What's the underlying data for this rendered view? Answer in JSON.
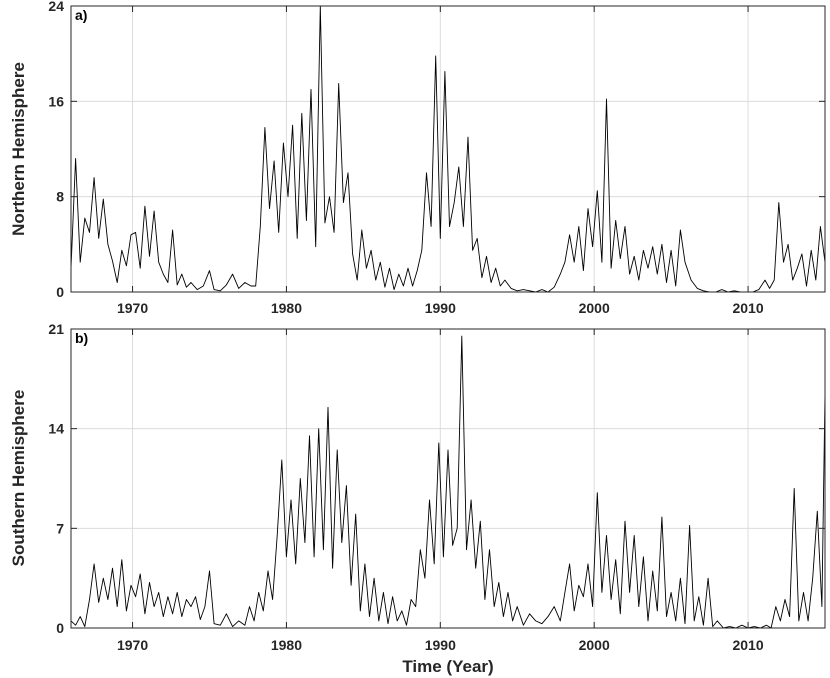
{
  "chart_data": [
    {
      "type": "line",
      "panel_label": "a)",
      "ylabel": "Northern Hemisphere",
      "xlim": [
        1966,
        2015
      ],
      "ylim": [
        0,
        24
      ],
      "xticks": [
        1970,
        1980,
        1990,
        2000,
        2010
      ],
      "yticks": [
        0,
        8,
        16,
        24
      ],
      "grid": true,
      "color": "#000000",
      "series": [
        {
          "x": [
            1966.0,
            1966.3,
            1966.6,
            1966.9,
            1967.2,
            1967.5,
            1967.8,
            1968.1,
            1968.4,
            1968.7,
            1969.0,
            1969.3,
            1969.6,
            1969.9,
            1970.2,
            1970.5,
            1970.8,
            1971.1,
            1971.4,
            1971.7,
            1972.0,
            1972.3,
            1972.6,
            1972.9,
            1973.2,
            1973.5,
            1973.8,
            1974.2,
            1974.6,
            1975.0,
            1975.3,
            1975.7,
            1976.1,
            1976.5,
            1976.9,
            1977.3,
            1977.7,
            1978.0,
            1978.3,
            1978.6,
            1978.9,
            1979.2,
            1979.5,
            1979.8,
            1980.1,
            1980.4,
            1980.7,
            1981.0,
            1981.3,
            1981.6,
            1981.9,
            1982.2,
            1982.5,
            1982.8,
            1983.1,
            1983.4,
            1983.7,
            1984.0,
            1984.3,
            1984.6,
            1984.9,
            1985.2,
            1985.5,
            1985.8,
            1986.1,
            1986.4,
            1986.7,
            1987.0,
            1987.3,
            1987.6,
            1987.9,
            1988.2,
            1988.5,
            1988.8,
            1989.1,
            1989.4,
            1989.7,
            1990.0,
            1990.3,
            1990.6,
            1990.9,
            1991.2,
            1991.5,
            1991.8,
            1992.1,
            1992.4,
            1992.7,
            1993.0,
            1993.3,
            1993.6,
            1993.9,
            1994.2,
            1994.6,
            1995.0,
            1995.4,
            1995.8,
            1996.2,
            1996.6,
            1997.0,
            1997.4,
            1997.8,
            1998.1,
            1998.4,
            1998.7,
            1999.0,
            1999.3,
            1999.6,
            1999.9,
            2000.2,
            2000.5,
            2000.8,
            2001.1,
            2001.4,
            2001.7,
            2002.0,
            2002.3,
            2002.6,
            2002.9,
            2003.2,
            2003.5,
            2003.8,
            2004.1,
            2004.4,
            2004.7,
            2005.0,
            2005.3,
            2005.6,
            2005.9,
            2006.3,
            2006.7,
            2007.1,
            2007.5,
            2007.9,
            2008.3,
            2008.7,
            2009.1,
            2009.5,
            2009.9,
            2010.3,
            2010.7,
            2011.1,
            2011.4,
            2011.7,
            2012.0,
            2012.3,
            2012.6,
            2012.9,
            2013.2,
            2013.5,
            2013.8,
            2014.1,
            2014.4,
            2014.7,
            2015.0
          ],
          "values": [
            2.0,
            11.2,
            2.5,
            6.2,
            5.0,
            9.6,
            4.5,
            7.8,
            4.0,
            2.6,
            0.8,
            3.5,
            2.2,
            4.8,
            5.0,
            2.0,
            7.2,
            3.0,
            6.8,
            2.5,
            1.5,
            0.8,
            5.2,
            0.6,
            1.5,
            0.4,
            0.8,
            0.2,
            0.5,
            1.8,
            0.2,
            0.1,
            0.6,
            1.5,
            0.3,
            0.8,
            0.5,
            0.5,
            5.5,
            13.8,
            7.0,
            11.0,
            5.0,
            12.5,
            8.0,
            14.0,
            4.5,
            15.0,
            6.0,
            17.0,
            3.8,
            24.0,
            5.8,
            8.0,
            5.0,
            17.5,
            7.5,
            10.0,
            3.2,
            1.0,
            5.2,
            2.0,
            3.5,
            1.0,
            2.5,
            0.4,
            2.0,
            0.2,
            1.5,
            0.5,
            2.0,
            0.5,
            1.8,
            3.5,
            10.0,
            5.5,
            19.8,
            4.5,
            18.5,
            5.5,
            7.5,
            10.5,
            5.5,
            13.0,
            3.5,
            4.5,
            1.2,
            3.0,
            0.8,
            2.0,
            0.5,
            1.0,
            0.3,
            0.1,
            0.2,
            0.1,
            0.0,
            0.2,
            0.0,
            0.4,
            1.5,
            2.5,
            4.8,
            2.5,
            5.5,
            1.8,
            7.0,
            3.8,
            8.5,
            2.5,
            16.2,
            2.0,
            6.0,
            2.8,
            5.5,
            1.5,
            3.0,
            1.0,
            3.5,
            2.0,
            3.8,
            1.5,
            4.0,
            0.8,
            3.5,
            0.5,
            5.2,
            2.5,
            1.0,
            0.3,
            0.1,
            0.0,
            0.0,
            0.2,
            0.0,
            0.1,
            0.0,
            0.0,
            0.0,
            0.2,
            1.0,
            0.3,
            1.0,
            7.5,
            2.5,
            4.0,
            1.0,
            2.0,
            3.2,
            0.5,
            3.5,
            1.0,
            5.5,
            2.5
          ]
        }
      ]
    },
    {
      "type": "line",
      "panel_label": "b)",
      "ylabel": "Southern Hemisphere",
      "xlabel": "Time (Year)",
      "xlim": [
        1966,
        2015
      ],
      "ylim": [
        0,
        21
      ],
      "xticks": [
        1970,
        1980,
        1990,
        2000,
        2010
      ],
      "yticks": [
        0,
        7,
        14,
        21
      ],
      "grid": true,
      "color": "#000000",
      "series": [
        {
          "x": [
            1966.0,
            1966.3,
            1966.6,
            1966.9,
            1967.2,
            1967.5,
            1967.8,
            1968.1,
            1968.4,
            1968.7,
            1969.0,
            1969.3,
            1969.6,
            1969.9,
            1970.2,
            1970.5,
            1970.8,
            1971.1,
            1971.4,
            1971.7,
            1972.0,
            1972.3,
            1972.6,
            1972.9,
            1973.2,
            1973.5,
            1973.8,
            1974.1,
            1974.4,
            1974.7,
            1975.0,
            1975.3,
            1975.7,
            1976.1,
            1976.5,
            1976.9,
            1977.3,
            1977.6,
            1977.9,
            1978.2,
            1978.5,
            1978.8,
            1979.1,
            1979.4,
            1979.7,
            1980.0,
            1980.3,
            1980.6,
            1980.9,
            1981.2,
            1981.5,
            1981.8,
            1982.1,
            1982.4,
            1982.7,
            1983.0,
            1983.3,
            1983.6,
            1983.9,
            1984.2,
            1984.5,
            1984.8,
            1985.1,
            1985.4,
            1985.7,
            1986.0,
            1986.3,
            1986.6,
            1986.9,
            1987.2,
            1987.5,
            1987.8,
            1988.1,
            1988.4,
            1988.7,
            1989.0,
            1989.3,
            1989.6,
            1989.9,
            1990.2,
            1990.5,
            1990.8,
            1991.1,
            1991.4,
            1991.7,
            1992.0,
            1992.3,
            1992.6,
            1992.9,
            1993.2,
            1993.5,
            1993.8,
            1994.1,
            1994.4,
            1994.7,
            1995.0,
            1995.4,
            1995.8,
            1996.2,
            1996.6,
            1997.0,
            1997.4,
            1997.8,
            1998.1,
            1998.4,
            1998.7,
            1999.0,
            1999.3,
            1999.6,
            1999.9,
            2000.2,
            2000.5,
            2000.8,
            2001.1,
            2001.4,
            2001.7,
            2002.0,
            2002.3,
            2002.6,
            2002.9,
            2003.2,
            2003.5,
            2003.8,
            2004.1,
            2004.4,
            2004.7,
            2005.0,
            2005.3,
            2005.6,
            2005.9,
            2006.2,
            2006.5,
            2006.8,
            2007.1,
            2007.4,
            2007.7,
            2008.0,
            2008.4,
            2008.8,
            2009.2,
            2009.6,
            2010.0,
            2010.4,
            2010.8,
            2011.2,
            2011.5,
            2011.8,
            2012.1,
            2012.4,
            2012.7,
            2013.0,
            2013.3,
            2013.6,
            2013.9,
            2014.2,
            2014.5,
            2014.8,
            2015.0
          ],
          "values": [
            0.5,
            0.2,
            0.8,
            0.1,
            2.0,
            4.5,
            1.8,
            3.5,
            2.0,
            4.2,
            1.5,
            4.8,
            1.2,
            3.0,
            2.2,
            3.8,
            1.0,
            3.2,
            1.5,
            2.5,
            0.8,
            2.2,
            1.0,
            2.5,
            0.8,
            2.0,
            1.5,
            2.2,
            0.6,
            1.5,
            4.0,
            0.3,
            0.2,
            1.0,
            0.1,
            0.5,
            0.2,
            1.5,
            0.5,
            2.5,
            1.2,
            4.0,
            2.0,
            6.5,
            11.8,
            5.0,
            9.0,
            4.5,
            10.5,
            6.0,
            13.5,
            5.0,
            14.0,
            5.5,
            15.5,
            4.2,
            12.5,
            6.0,
            10.0,
            3.0,
            8.0,
            1.2,
            4.5,
            0.8,
            3.5,
            0.5,
            2.5,
            0.3,
            2.2,
            0.5,
            1.2,
            0.2,
            2.0,
            1.5,
            5.5,
            3.5,
            9.0,
            4.5,
            13.0,
            5.0,
            12.5,
            5.8,
            7.0,
            20.5,
            5.5,
            9.0,
            4.2,
            7.5,
            2.0,
            5.5,
            1.5,
            3.2,
            0.8,
            2.5,
            0.5,
            1.5,
            0.2,
            1.0,
            0.5,
            0.3,
            0.8,
            1.5,
            0.5,
            2.5,
            4.5,
            1.2,
            3.0,
            2.2,
            4.5,
            1.5,
            9.5,
            2.5,
            6.5,
            2.0,
            4.8,
            1.0,
            7.5,
            2.5,
            6.5,
            1.5,
            5.0,
            0.5,
            4.0,
            1.2,
            7.8,
            0.8,
            2.5,
            0.5,
            3.5,
            0.3,
            7.2,
            0.5,
            2.2,
            0.2,
            3.5,
            0.1,
            0.5,
            0.0,
            0.1,
            0.0,
            0.2,
            0.0,
            0.1,
            0.0,
            0.2,
            0.0,
            1.5,
            0.5,
            2.0,
            0.8,
            9.8,
            0.5,
            2.5,
            0.5,
            3.5,
            8.2,
            1.5,
            16.5
          ]
        }
      ]
    }
  ]
}
